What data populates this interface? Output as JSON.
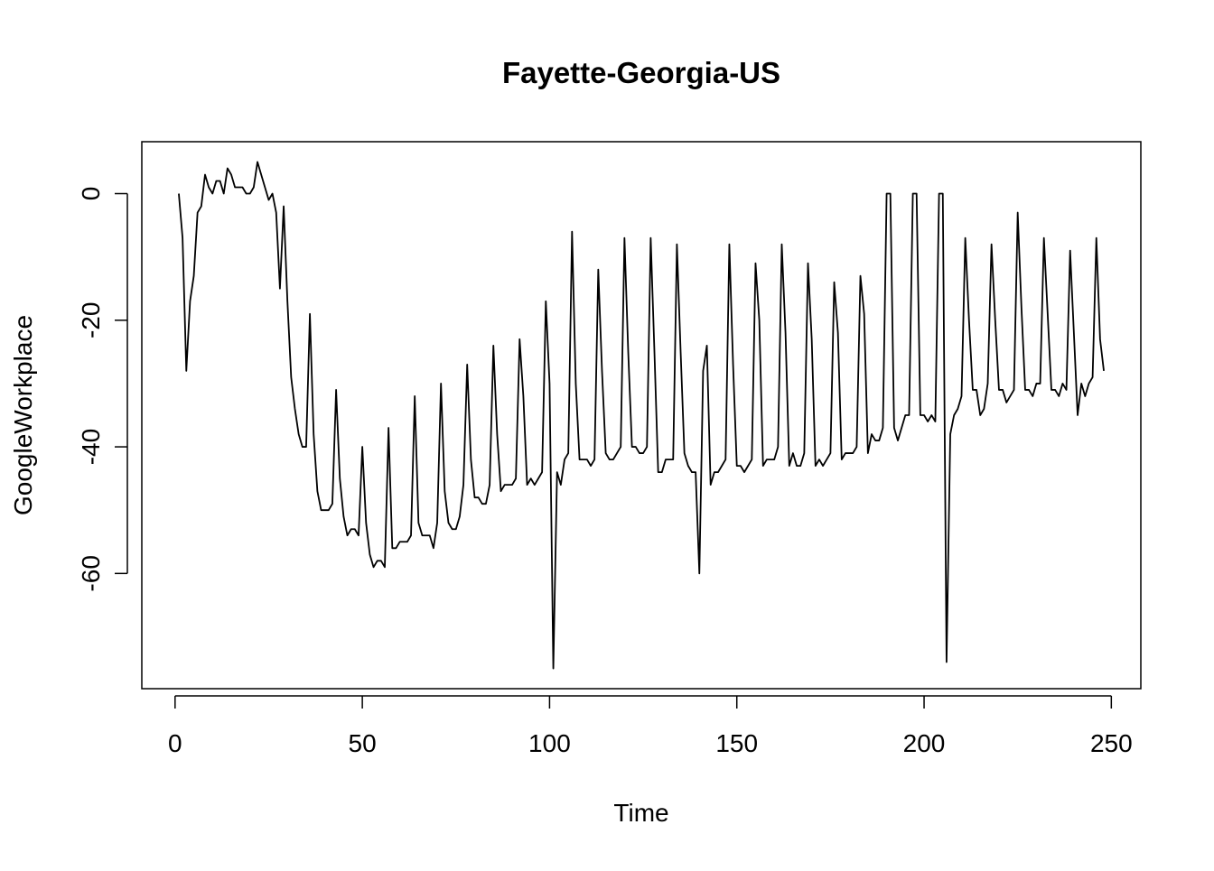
{
  "chart_data": {
    "type": "line",
    "title": "Fayette-Georgia-US",
    "x_label": "Time",
    "y_label": "GoogleWorkplace",
    "x": [
      1,
      2,
      3,
      4,
      5,
      6,
      7,
      8,
      9,
      10,
      11,
      12,
      13,
      14,
      15,
      16,
      17,
      18,
      19,
      20,
      21,
      22,
      23,
      24,
      25,
      26,
      27,
      28,
      29,
      30,
      31,
      32,
      33,
      34,
      35,
      36,
      37,
      38,
      39,
      40,
      41,
      42,
      43,
      44,
      45,
      46,
      47,
      48,
      49,
      50,
      51,
      52,
      53,
      54,
      55,
      56,
      57,
      58,
      59,
      60,
      61,
      62,
      63,
      64,
      65,
      66,
      67,
      68,
      69,
      70,
      71,
      72,
      73,
      74,
      75,
      76,
      77,
      78,
      79,
      80,
      81,
      82,
      83,
      84,
      85,
      86,
      87,
      88,
      89,
      90,
      91,
      92,
      93,
      94,
      95,
      96,
      97,
      98,
      99,
      100,
      101,
      102,
      103,
      104,
      105,
      106,
      107,
      108,
      109,
      110,
      111,
      112,
      113,
      114,
      115,
      116,
      117,
      118,
      119,
      120,
      121,
      122,
      123,
      124,
      125,
      126,
      127,
      128,
      129,
      130,
      131,
      132,
      133,
      134,
      135,
      136,
      137,
      138,
      139,
      140,
      141,
      142,
      143,
      144,
      145,
      146,
      147,
      148,
      149,
      150,
      151,
      152,
      153,
      154,
      155,
      156,
      157,
      158,
      159,
      160,
      161,
      162,
      163,
      164,
      165,
      166,
      167,
      168,
      169,
      170,
      171,
      172,
      173,
      174,
      175,
      176,
      177,
      178,
      179,
      180,
      181,
      182,
      183,
      184,
      185,
      186,
      187,
      188,
      189,
      190,
      191,
      192,
      193,
      194,
      195,
      196,
      197,
      198,
      199,
      200,
      201,
      202,
      203,
      204,
      205,
      206,
      207,
      208,
      209,
      210,
      211,
      212,
      213,
      214,
      215,
      216,
      217,
      218,
      219,
      220,
      221,
      222,
      223,
      224,
      225,
      226,
      227,
      228,
      229,
      230,
      231,
      232,
      233,
      234,
      235,
      236,
      237,
      238,
      239,
      240,
      241,
      242,
      243,
      244,
      245,
      246,
      247,
      248
    ],
    "values": [
      0,
      -7,
      -28,
      -17,
      -13,
      -3,
      -2,
      3,
      1,
      0,
      2,
      2,
      0,
      4,
      3,
      1,
      1,
      1,
      0,
      0,
      1,
      5,
      3,
      1,
      -1,
      0,
      -3,
      -15,
      -2,
      -17,
      -29,
      -34,
      -38,
      -40,
      -40,
      -19,
      -38,
      -47,
      -50,
      -50,
      -50,
      -49,
      -31,
      -45,
      -51,
      -54,
      -53,
      -53,
      -54,
      -40,
      -52,
      -57,
      -59,
      -58,
      -58,
      -59,
      -37,
      -56,
      -56,
      -55,
      -55,
      -55,
      -54,
      -32,
      -52,
      -54,
      -54,
      -54,
      -56,
      -52,
      -30,
      -47,
      -52,
      -53,
      -53,
      -51,
      -46,
      -27,
      -42,
      -48,
      -48,
      -49,
      -49,
      -46,
      -24,
      -38,
      -47,
      -46,
      -46,
      -46,
      -45,
      -23,
      -32,
      -46,
      -45,
      -46,
      -45,
      -44,
      -17,
      -30,
      -75,
      -44,
      -46,
      -42,
      -41,
      -6,
      -30,
      -42,
      -42,
      -42,
      -43,
      -42,
      -12,
      -28,
      -41,
      -42,
      -42,
      -41,
      -40,
      -7,
      -25,
      -40,
      -40,
      -41,
      -41,
      -40,
      -7,
      -25,
      -44,
      -44,
      -42,
      -42,
      -42,
      -8,
      -25,
      -41,
      -43,
      -44,
      -44,
      -60,
      -28,
      -24,
      -46,
      -44,
      -44,
      -43,
      -42,
      -8,
      -27,
      -43,
      -43,
      -44,
      -43,
      -42,
      -11,
      -20,
      -43,
      -42,
      -42,
      -42,
      -40,
      -8,
      -22,
      -43,
      -41,
      -43,
      -43,
      -41,
      -11,
      -23,
      -43,
      -42,
      -43,
      -42,
      -41,
      -14,
      -22,
      -42,
      -41,
      -41,
      -41,
      -40,
      -13,
      -19,
      -41,
      -38,
      -39,
      -39,
      -37,
      0,
      0,
      -37,
      -39,
      -37,
      -35,
      -35,
      0,
      0,
      -35,
      -35,
      -36,
      -35,
      -36,
      0,
      0,
      -74,
      -38,
      -35,
      -34,
      -32,
      -7,
      -20,
      -31,
      -31,
      -35,
      -34,
      -30,
      -8,
      -20,
      -31,
      -31,
      -33,
      -32,
      -31,
      -3,
      -18,
      -31,
      -31,
      -32,
      -30,
      -30,
      -7,
      -19,
      -31,
      -31,
      -32,
      -30,
      -31,
      -9,
      -22,
      -35,
      -30,
      -32,
      -30,
      -29,
      -7,
      -23,
      -28
    ],
    "color": "#000000",
    "xlim": [
      -8.88,
      257.88
    ],
    "ylim": [
      -78.2,
      8.2
    ],
    "xticks": [
      0,
      50,
      100,
      150,
      200,
      250
    ],
    "yticks": [
      0,
      -20,
      -40,
      -60
    ]
  }
}
